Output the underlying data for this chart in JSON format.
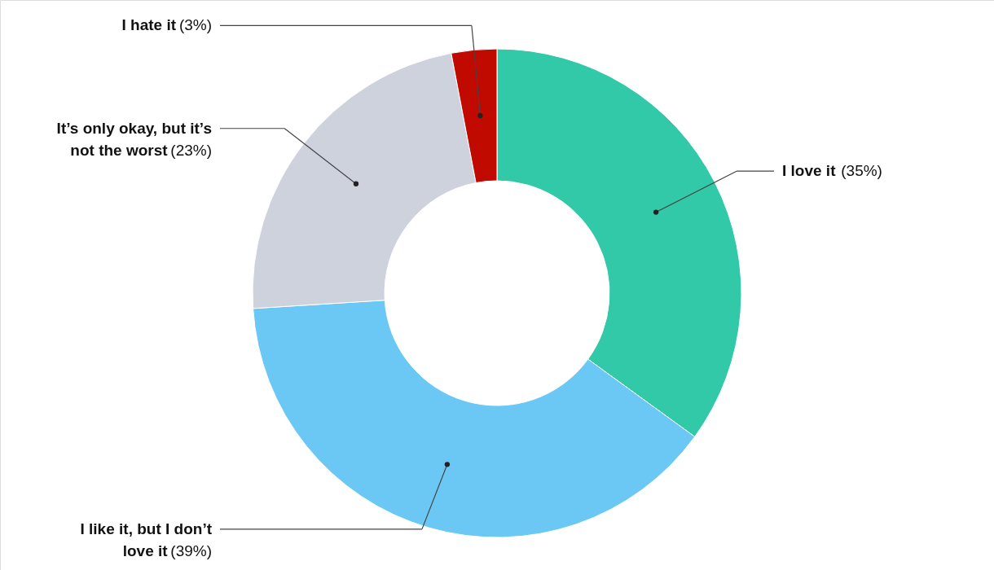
{
  "chart_data": {
    "type": "donut",
    "categories": [
      "I love it",
      "I like it, but I don’t love it",
      "It’s only okay, but it’s not the worst",
      "I hate it"
    ],
    "values": [
      35,
      39,
      23,
      3
    ],
    "colors": [
      "#31c9a8",
      "#6bc8f5",
      "#cdd2dd",
      "#c00a00"
    ],
    "value_labels": [
      "(35%)",
      "(39%)",
      "(23%)",
      "(3%)"
    ]
  }
}
